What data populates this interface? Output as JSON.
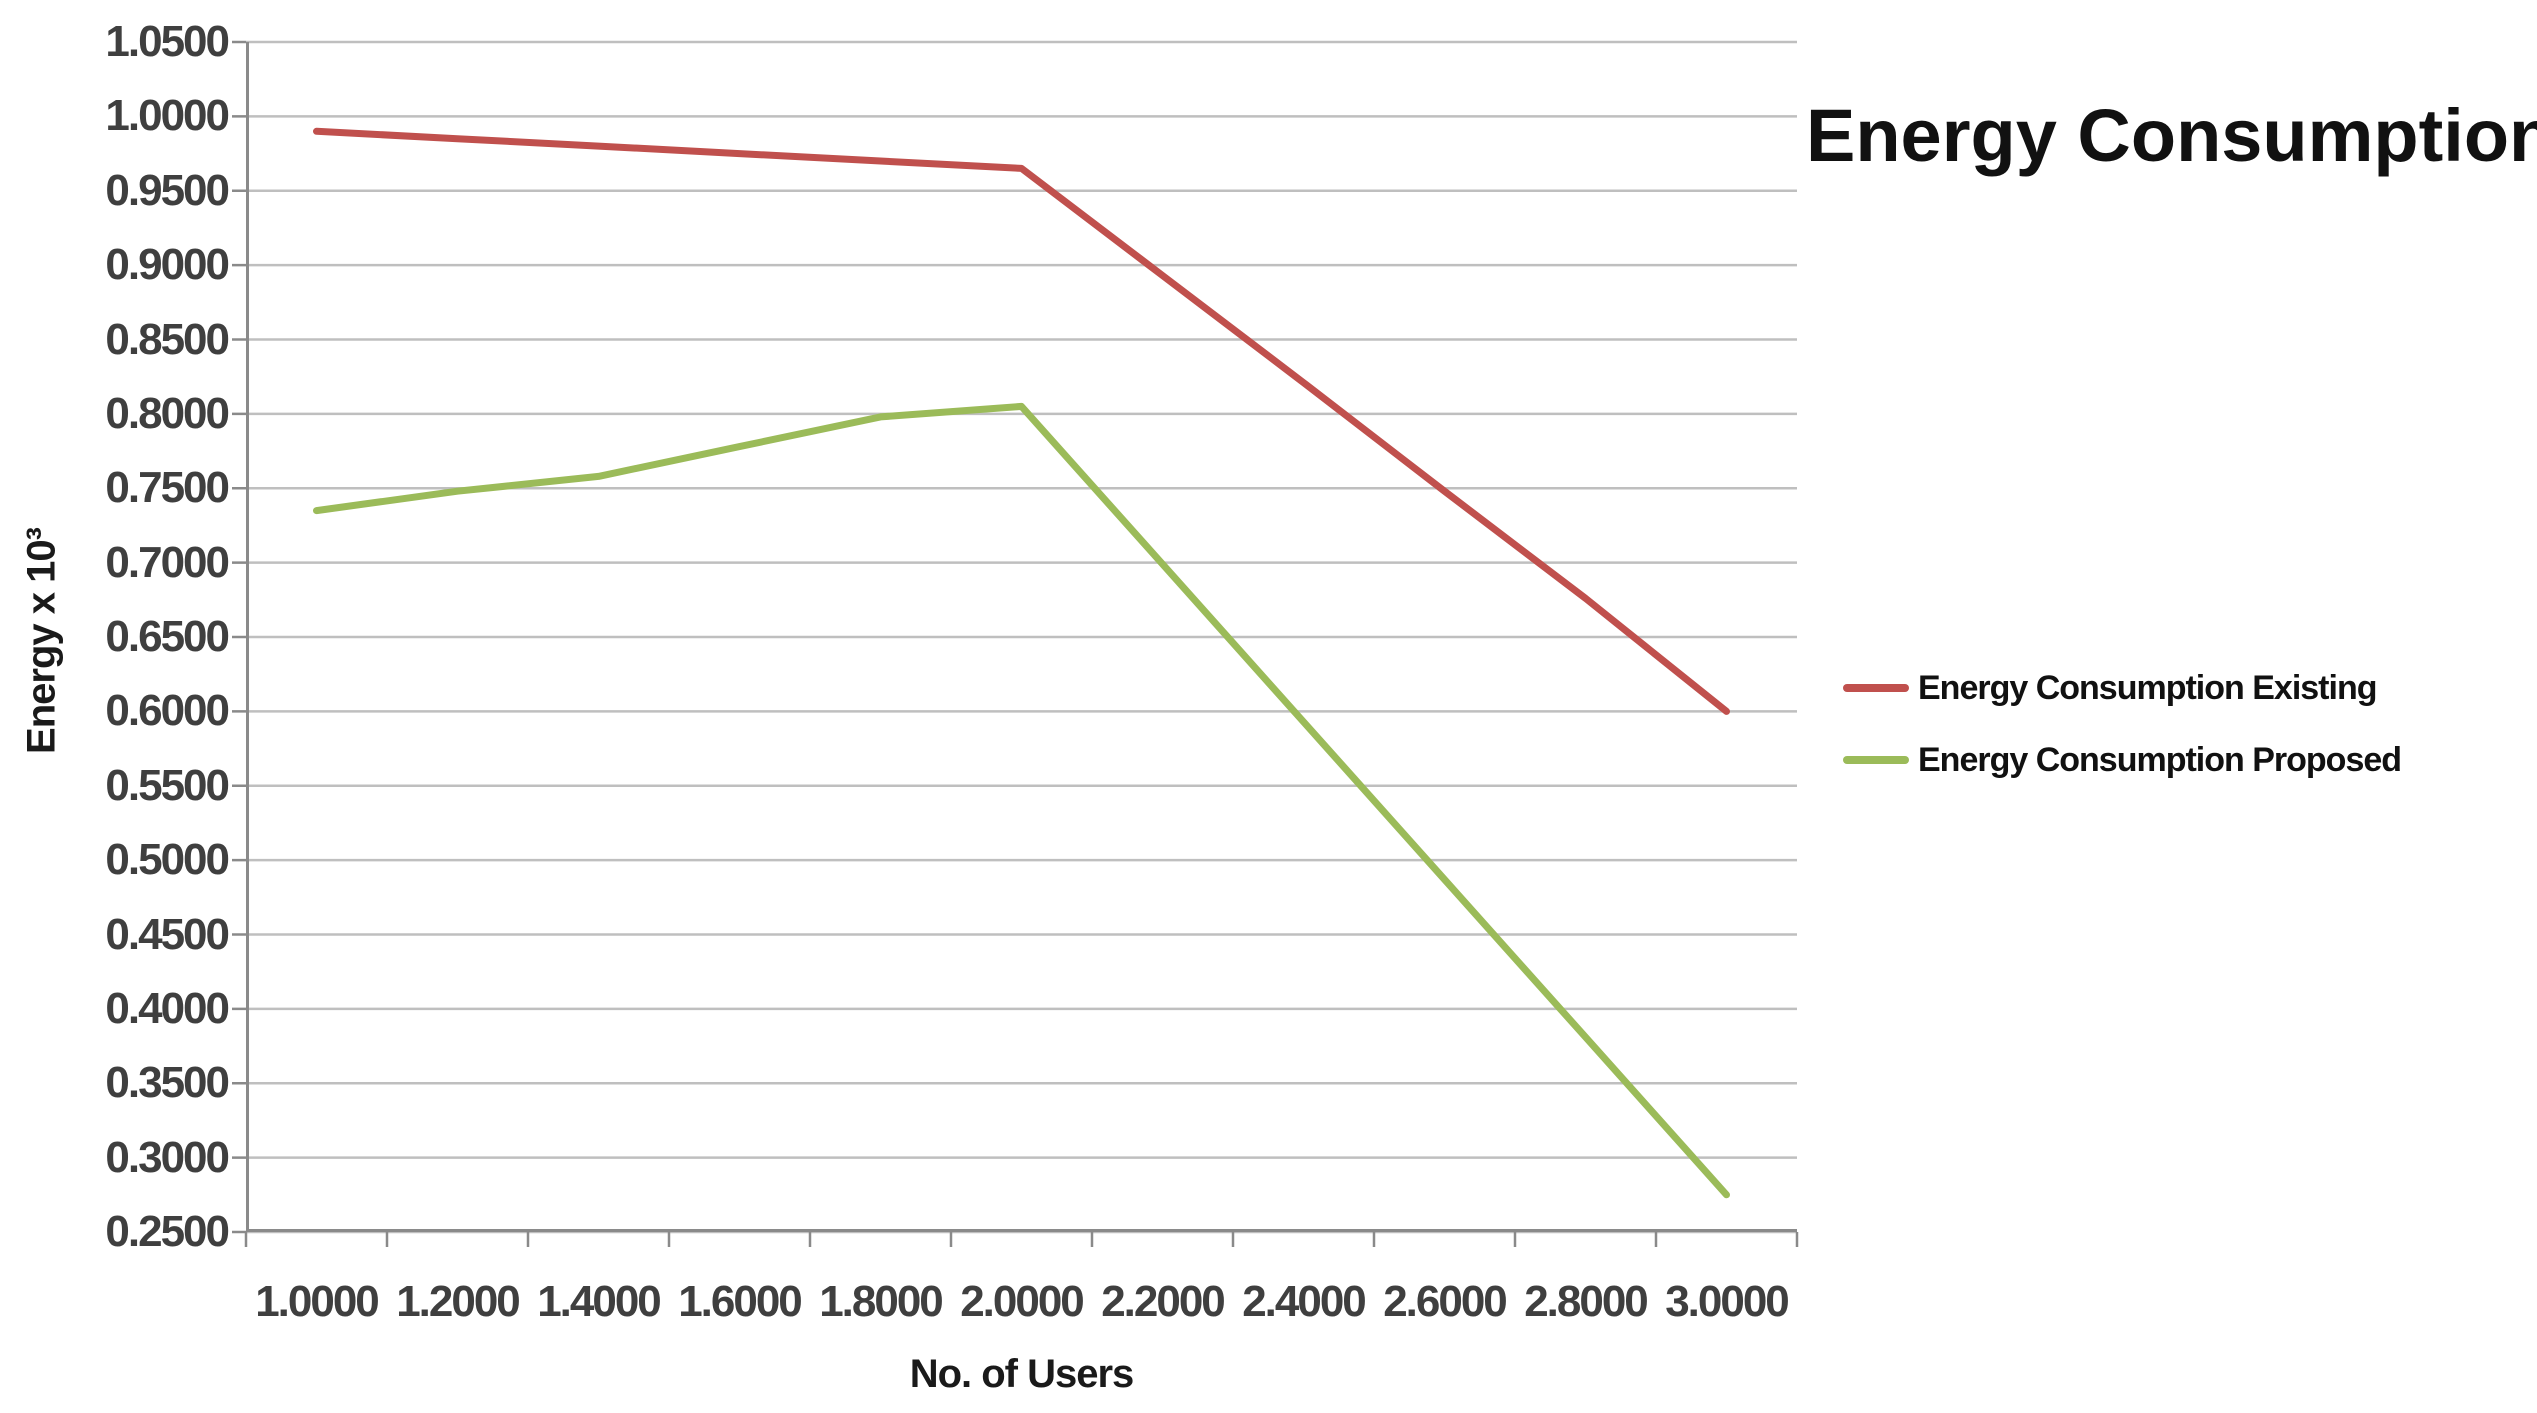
{
  "page": {
    "background": "#ffffff"
  },
  "chart_data": {
    "type": "line",
    "title": "Energy Consumption",
    "xlabel": "No. of Users",
    "ylabel": "Energy x 10³",
    "x": [
      1.0,
      1.2,
      1.4,
      1.6,
      1.8,
      2.0,
      2.2,
      2.4,
      2.6,
      2.8,
      3.0
    ],
    "x_tick_labels": [
      "1.0000",
      "1.2000",
      "1.4000",
      "1.6000",
      "1.8000",
      "2.0000",
      "2.2000",
      "2.4000",
      "2.6000",
      "2.8000",
      "3.0000"
    ],
    "y_tick_labels": [
      "0.2500",
      "0.3000",
      "0.3500",
      "0.4000",
      "0.4500",
      "0.5000",
      "0.5500",
      "0.6000",
      "0.6500",
      "0.7000",
      "0.7500",
      "0.8000",
      "0.8500",
      "0.9000",
      "0.9500",
      "1.0000",
      "1.0500"
    ],
    "ylim": [
      0.25,
      1.05
    ],
    "ytick_step": 0.05,
    "grid": "horizontal",
    "legend_position": "right-middle",
    "gridline_color": "#bfbfbf",
    "axis_color": "#8a8a8a",
    "series": [
      {
        "name": "Energy Consumption Existing",
        "color": "#C0504D",
        "values": [
          0.99,
          0.985,
          0.98,
          0.975,
          0.97,
          0.965,
          0.893,
          0.821,
          0.748,
          0.676,
          0.6
        ]
      },
      {
        "name": "Energy Consumption Proposed",
        "color": "#9BBB59",
        "values": [
          0.735,
          0.748,
          0.758,
          0.778,
          0.798,
          0.805,
          0.699,
          0.593,
          0.487,
          0.381,
          0.275
        ]
      }
    ]
  }
}
